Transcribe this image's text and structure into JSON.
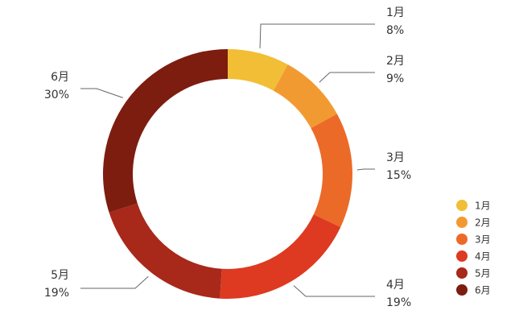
{
  "chart_data": {
    "type": "pie",
    "variant": "donut",
    "title": "",
    "categories": [
      "1月",
      "2月",
      "3月",
      "4月",
      "5月",
      "6月"
    ],
    "values": [
      8,
      9,
      15,
      19,
      19,
      30
    ],
    "labels": [
      "8%",
      "9%",
      "15%",
      "19%",
      "19%",
      "30%"
    ],
    "colors": [
      "#F2BE35",
      "#F29A32",
      "#EC6A28",
      "#DD3A21",
      "#A8281A",
      "#7C1D10"
    ],
    "legend": "right",
    "start_angle": "top",
    "direction": "clockwise"
  }
}
